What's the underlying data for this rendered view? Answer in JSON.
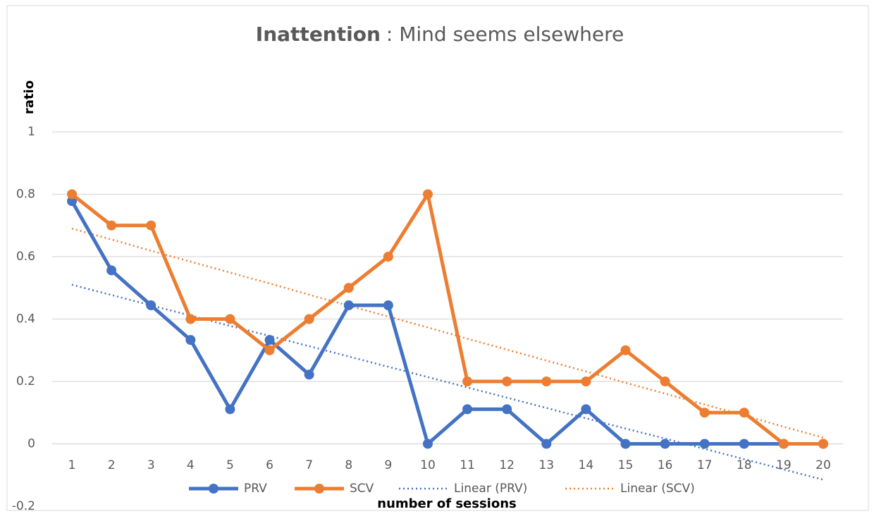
{
  "chart_data": {
    "type": "line",
    "title": "Inattention",
    "subtitle": ": Mind seems elsewhere",
    "x_label": "number of sessions",
    "y_label": "ratio",
    "categories": [
      "1",
      "2",
      "3",
      "4",
      "5",
      "6",
      "7",
      "8",
      "9",
      "10",
      "11",
      "12",
      "13",
      "14",
      "15",
      "16",
      "17",
      "18",
      "19",
      "20"
    ],
    "series": [
      {
        "name": "PRV",
        "color": "#4472c4",
        "style": "solid",
        "values": [
          0.778,
          0.556,
          0.444,
          0.333,
          0.111,
          0.333,
          0.222,
          0.444,
          0.444,
          0,
          0.111,
          0.111,
          0,
          0.111,
          0,
          0,
          0,
          0,
          0,
          0
        ]
      },
      {
        "name": "SCV",
        "color": "#ed7d31",
        "style": "solid",
        "values": [
          0.8,
          0.7,
          0.7,
          0.4,
          0.4,
          0.3,
          0.4,
          0.5,
          0.6,
          0.8,
          0.2,
          0.2,
          0.2,
          0.2,
          0.3,
          0.2,
          0.1,
          0.1,
          0,
          0
        ]
      },
      {
        "name": "Linear (PRV)",
        "color": "#4472c4",
        "style": "dotted",
        "values": [
          0.51,
          0.477,
          0.444,
          0.411,
          0.378,
          0.346,
          0.313,
          0.28,
          0.247,
          0.214,
          0.181,
          0.148,
          0.115,
          0.082,
          0.049,
          0.017,
          -0.016,
          -0.049,
          -0.082,
          -0.115
        ]
      },
      {
        "name": "Linear (SCV)",
        "color": "#ed7d31",
        "style": "dotted",
        "values": [
          0.69,
          0.655,
          0.619,
          0.584,
          0.549,
          0.514,
          0.478,
          0.443,
          0.408,
          0.373,
          0.337,
          0.302,
          0.267,
          0.232,
          0.196,
          0.161,
          0.126,
          0.091,
          0.055,
          0.02
        ]
      }
    ],
    "ylim": [
      -0.2,
      1
    ],
    "yticks": [
      -0.2,
      0,
      0.2,
      0.4,
      0.6,
      0.8,
      1
    ],
    "grid": true,
    "legend": "bottom"
  }
}
